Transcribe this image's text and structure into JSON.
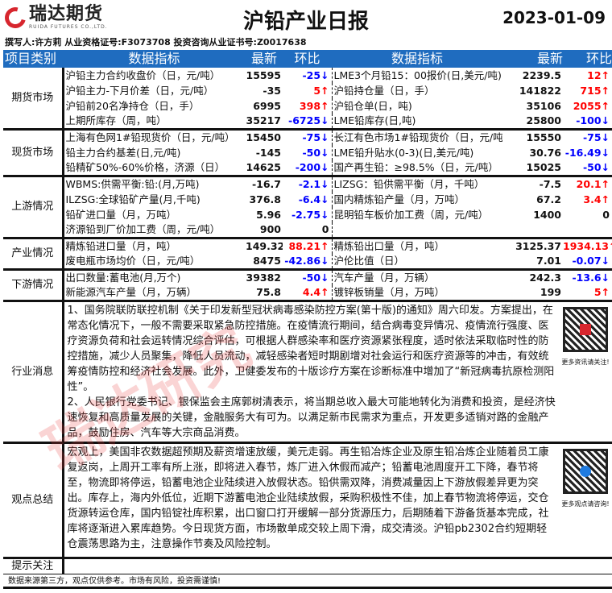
{
  "header": {
    "logo_cn": "瑞达期货",
    "logo_en": "RUIDA FUTURES CO.,LTD.",
    "title": "沪铅产业日报",
    "date": "2023-01-09",
    "author": "撰写人:许方莉    从业资格证号:F3073708    投资咨询从业证书号:Z0017638"
  },
  "columns": {
    "category": "项目类别",
    "indicator": "数据指标",
    "latest": "最新",
    "change": "环比"
  },
  "groups": [
    {
      "category": "期货市场",
      "rows": [
        [
          "沪铅主力合约收盘价（日，元/吨）",
          "15595",
          "-25↓",
          "down",
          "LME3个月铅15：00报价(日,美元/吨)",
          "2239.5",
          "12↑",
          "up"
        ],
        [
          "沪铅主力-下月价差（日，元/吨）",
          "-35",
          "5↑",
          "up",
          "沪铅持仓量（日，手）",
          "141822",
          "715↑",
          "up"
        ],
        [
          "沪铅前20名净持仓（日，手）",
          "6995",
          "398↑",
          "up",
          "沪铅仓单(日，吨)",
          "35106",
          "2055↑",
          "up"
        ],
        [
          "上期所库存（周，吨）",
          "35217",
          "-6725↓",
          "down",
          "LME铅库存(日,吨)",
          "25800",
          "-100↓",
          "down"
        ]
      ]
    },
    {
      "category": "现货市场",
      "rows": [
        [
          "上海有色网1#铅现货价（日，元/吨）",
          "15450",
          "-75↓",
          "down",
          "长江有色市场1#铅现货价（日，元/吨",
          "15550",
          "-75↓",
          "down"
        ],
        [
          "铅主力合约基差(日,元/吨)",
          "-145",
          "-50↓",
          "down",
          "LME铅升贴水(0-3)(日,美元/吨)",
          "30.76",
          "-16.49↓",
          "down"
        ],
        [
          "铅精矿50%-60%价格，济源（日）",
          "14625",
          "-200↓",
          "down",
          "国产再生铅：≥98.5%（日，元/吨）",
          "15025",
          "-50↓",
          "down"
        ]
      ]
    },
    {
      "category": "上游情况",
      "rows": [
        [
          "WBMS:供需平衡:铅:(月,万吨)",
          "-16.7",
          "-2.1↓",
          "down",
          "LIZSG：铅供需平衡（月，千吨）",
          "-7.5",
          "20.1↑",
          "up"
        ],
        [
          "ILZSG:全球铅矿产量(月,千吨)",
          "376.8",
          "-6.4↓",
          "down",
          "国内精炼铅产量（月，万吨）",
          "67.2",
          "3.4↑",
          "up"
        ],
        [
          "铅矿进口量（月，万吨）",
          "5.96",
          "-2.75↓",
          "down",
          "昆明铅车板价加工费（周，元/吨）",
          "1400",
          "0",
          "flat"
        ],
        [
          "济源铅到厂价加工费（周，元/吨）",
          "900",
          "0",
          "flat",
          "",
          "",
          "",
          ""
        ]
      ]
    },
    {
      "category": "产业情况",
      "rows": [
        [
          "精炼铅进口量（月，吨）",
          "149.32",
          "88.21↑",
          "up",
          "精炼铅出口量（月，吨）",
          "3125.37",
          "1934.13↑",
          "up"
        ],
        [
          "废电瓶市场均价（日，元/吨）",
          "8475",
          "-42.86↓",
          "down",
          "沪伦比值（日）",
          "7.01",
          "-0.07↓",
          "down"
        ]
      ]
    },
    {
      "category": "下游情况",
      "rows": [
        [
          "出口数量:蓄电池(月,万个)",
          "39382",
          "-50↓",
          "down",
          "汽车产量（月，万辆）",
          "242.3",
          "-13.6↓",
          "down"
        ],
        [
          "新能源汽车产量（月，万辆）",
          "75.8",
          "4.4↑",
          "up",
          "镀锌板销量（月，万吨）",
          "199",
          "5↑",
          "up"
        ]
      ]
    }
  ],
  "news": {
    "label": "行业消息",
    "text": "1、国务院联防联控机制《关于印发新型冠状病毒感染防控方案(第十版)的通知》周六印发。方案提出，在常态化情况下，一般不需要采取紧急防控措施。在疫情流行期间，结合病毒变异情况、疫情流行强度、医疗资源负荷和社会运转情况综合评估，可根据人群感染率和医疗资源紧张程度，适时依法采取临时性的防控措施，减少人员聚集，降低人员流动，减轻感染者短时期剧增对社会运行和医疗资源等的冲击，有效统筹疫情防控和经济社会发展。此外，卫健委发布的十版诊疗方案在诊断标准中增加了“新冠病毒抗原检测阳性”。\n2、人民银行党委书记、银保监会主席郭树清表示，将当期总收入最大可能地转化为消费和投资，是经济快速恢复和高质量发展的关键，金融服务大有可为。以满足新市民需求为重点，开发更多适销对路的金融产品，鼓励住房、汽车等大宗商品消费。",
    "qr_caption": "更多资讯请关注!"
  },
  "view": {
    "label": "观点总结",
    "text": "宏观上，美国非农数据超预期及薪资增速放缓，美元走弱。再生铅冶炼企业及原生铅冶炼企业随着员工康复返岗，上周开工率有所上涨，即将进入春节，炼厂进入休假而减产；铅蓄电池周度开工下降，春节将至，物流即将停运，铅蓄电池企业陆续进入放假状态。铅供需双降，消费减量因上下游放假差异更为突出。库存上，海内外低位，近期下游蓄电池企业陆续放假，采购积极性不佳，加上春节物流将停运，交仓货源转运仓库，国内铅锭社库积累，出口窗口打开缓解一部分货源压力，后期随着下游备货基本完成，社库将逐渐进入累库趋势。今日现货方面，市场散单成交较上周下滑，成交清淡。沪铅pb2302合约短期轻仓震荡思路为主，注意操作节奏及风险控制。",
    "qr_caption": "更多观点请咨询!"
  },
  "tips": {
    "label": "提示关注",
    "text": ""
  },
  "footer": "数据来源第三方，观点仅供参考。市场有风险，投资需谨慎!",
  "watermark": "瑞达研究",
  "colors": {
    "header_bg": "#1f6cbf",
    "up": "#ff0000",
    "down": "#0000ff",
    "brand": "#d7262e"
  }
}
